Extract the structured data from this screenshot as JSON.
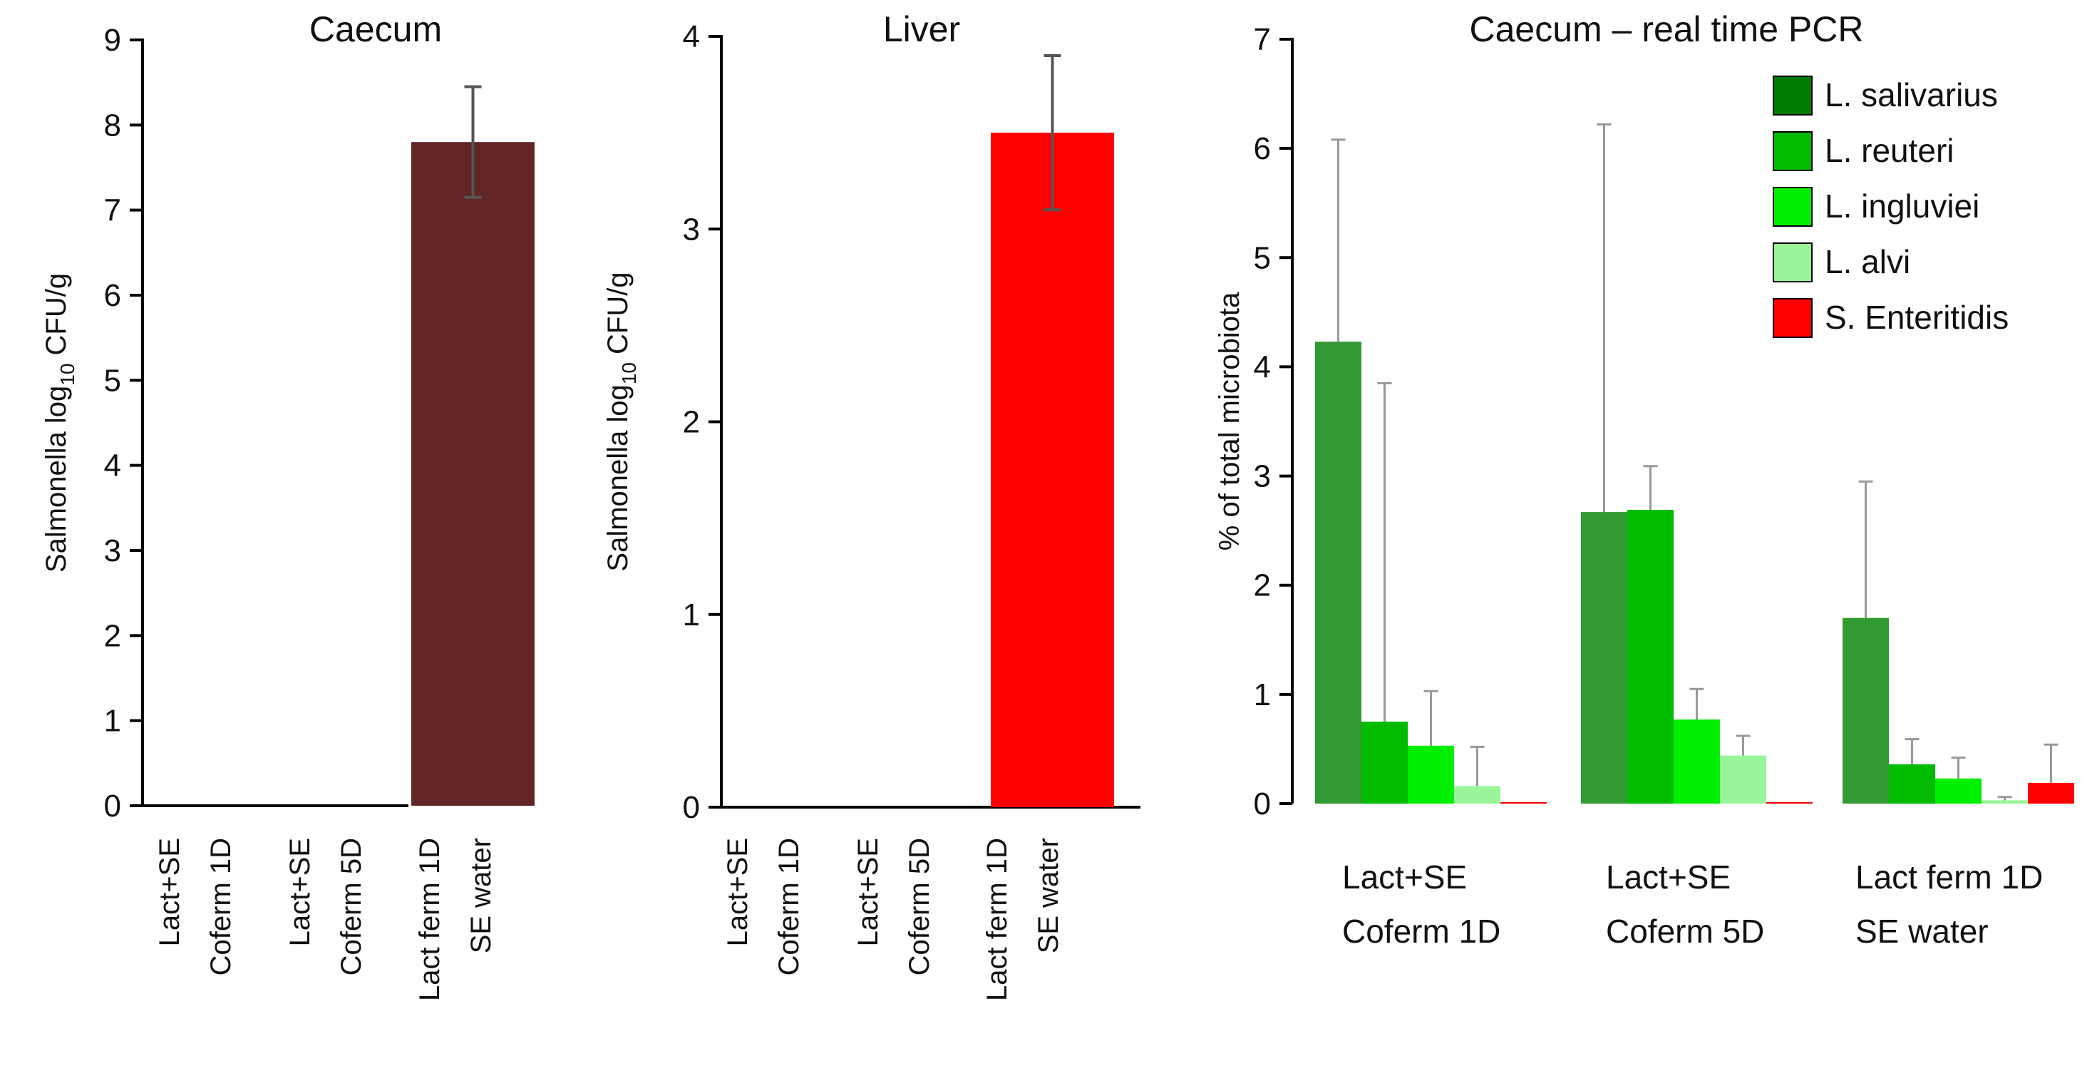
{
  "colors": {
    "caecum_bar": "#622424",
    "liver_bar": "#ff0000",
    "axis": "#000000",
    "error_bar": "#555555",
    "error_bar_light": "#999999"
  },
  "chart_data": [
    {
      "type": "bar",
      "title": "Caecum",
      "ylabel_prefix": "Salmonella log",
      "ylabel_sub": "10",
      "ylabel_suffix": " CFU/g",
      "ylim": [
        0,
        9
      ],
      "yticks": [
        "0",
        "1",
        "2",
        "3",
        "4",
        "5",
        "6",
        "7",
        "8",
        "9"
      ],
      "categories": [
        {
          "line1": "Lact+SE",
          "line2": "Coferm 1D"
        },
        {
          "line1": "Lact+SE",
          "line2": "Coferm 5D"
        },
        {
          "line1": "Lact ferm 1D",
          "line2": "SE water"
        }
      ],
      "values": [
        0,
        0,
        7.8
      ],
      "errors": [
        0,
        0,
        0.65
      ]
    },
    {
      "type": "bar",
      "title": "Liver",
      "ylabel_prefix": "Salmonella log",
      "ylabel_sub": "10",
      "ylabel_suffix": " CFU/g",
      "ylim": [
        0,
        4
      ],
      "yticks": [
        "0",
        "1",
        "2",
        "3",
        "4"
      ],
      "categories": [
        {
          "line1": "Lact+SE",
          "line2": "Coferm 1D"
        },
        {
          "line1": "Lact+SE",
          "line2": "Coferm 5D"
        },
        {
          "line1": "Lact ferm 1D",
          "line2": "SE water"
        }
      ],
      "values": [
        0,
        0,
        3.5
      ],
      "errors": [
        0,
        0,
        0.4
      ]
    },
    {
      "type": "bar",
      "title": "Caecum – real time PCR",
      "ylabel": "% of total microbiota",
      "ylim": [
        0,
        7
      ],
      "yticks": [
        "0",
        "1",
        "2",
        "3",
        "4",
        "5",
        "6",
        "7"
      ],
      "legend_position": "top-right",
      "categories": [
        {
          "line1": "Lact+SE",
          "line2": "Coferm 1D"
        },
        {
          "line1": "Lact+SE",
          "line2": "Coferm 5D"
        },
        {
          "line1": "Lact ferm 1D",
          "line2": "SE water"
        }
      ],
      "series": [
        {
          "name": "L. salivarius",
          "legend_color": "#007a00",
          "color": "#339933",
          "values": [
            4.23,
            2.67,
            1.7
          ],
          "errors": [
            1.85,
            3.55,
            1.25
          ]
        },
        {
          "name": "L. reuteri",
          "legend_color": "#00bb00",
          "color": "#00bb00",
          "values": [
            0.75,
            2.69,
            0.36
          ],
          "errors": [
            3.1,
            0.4,
            0.23
          ]
        },
        {
          "name": "L. ingluviei",
          "legend_color": "#00ee00",
          "color": "#00ee00",
          "values": [
            0.53,
            0.77,
            0.23
          ],
          "errors": [
            0.5,
            0.28,
            0.19
          ]
        },
        {
          "name": "L. alvi",
          "legend_color": "#99f599",
          "color": "#99f599",
          "values": [
            0.16,
            0.44,
            0.03
          ],
          "errors": [
            0.36,
            0.18,
            0.03
          ]
        },
        {
          "name": "S. Enteritidis",
          "legend_color": "#ff0000",
          "color": "#ff0000",
          "values": [
            0.01,
            0.01,
            0.19
          ],
          "errors": [
            0,
            0,
            0.35
          ]
        }
      ]
    }
  ]
}
